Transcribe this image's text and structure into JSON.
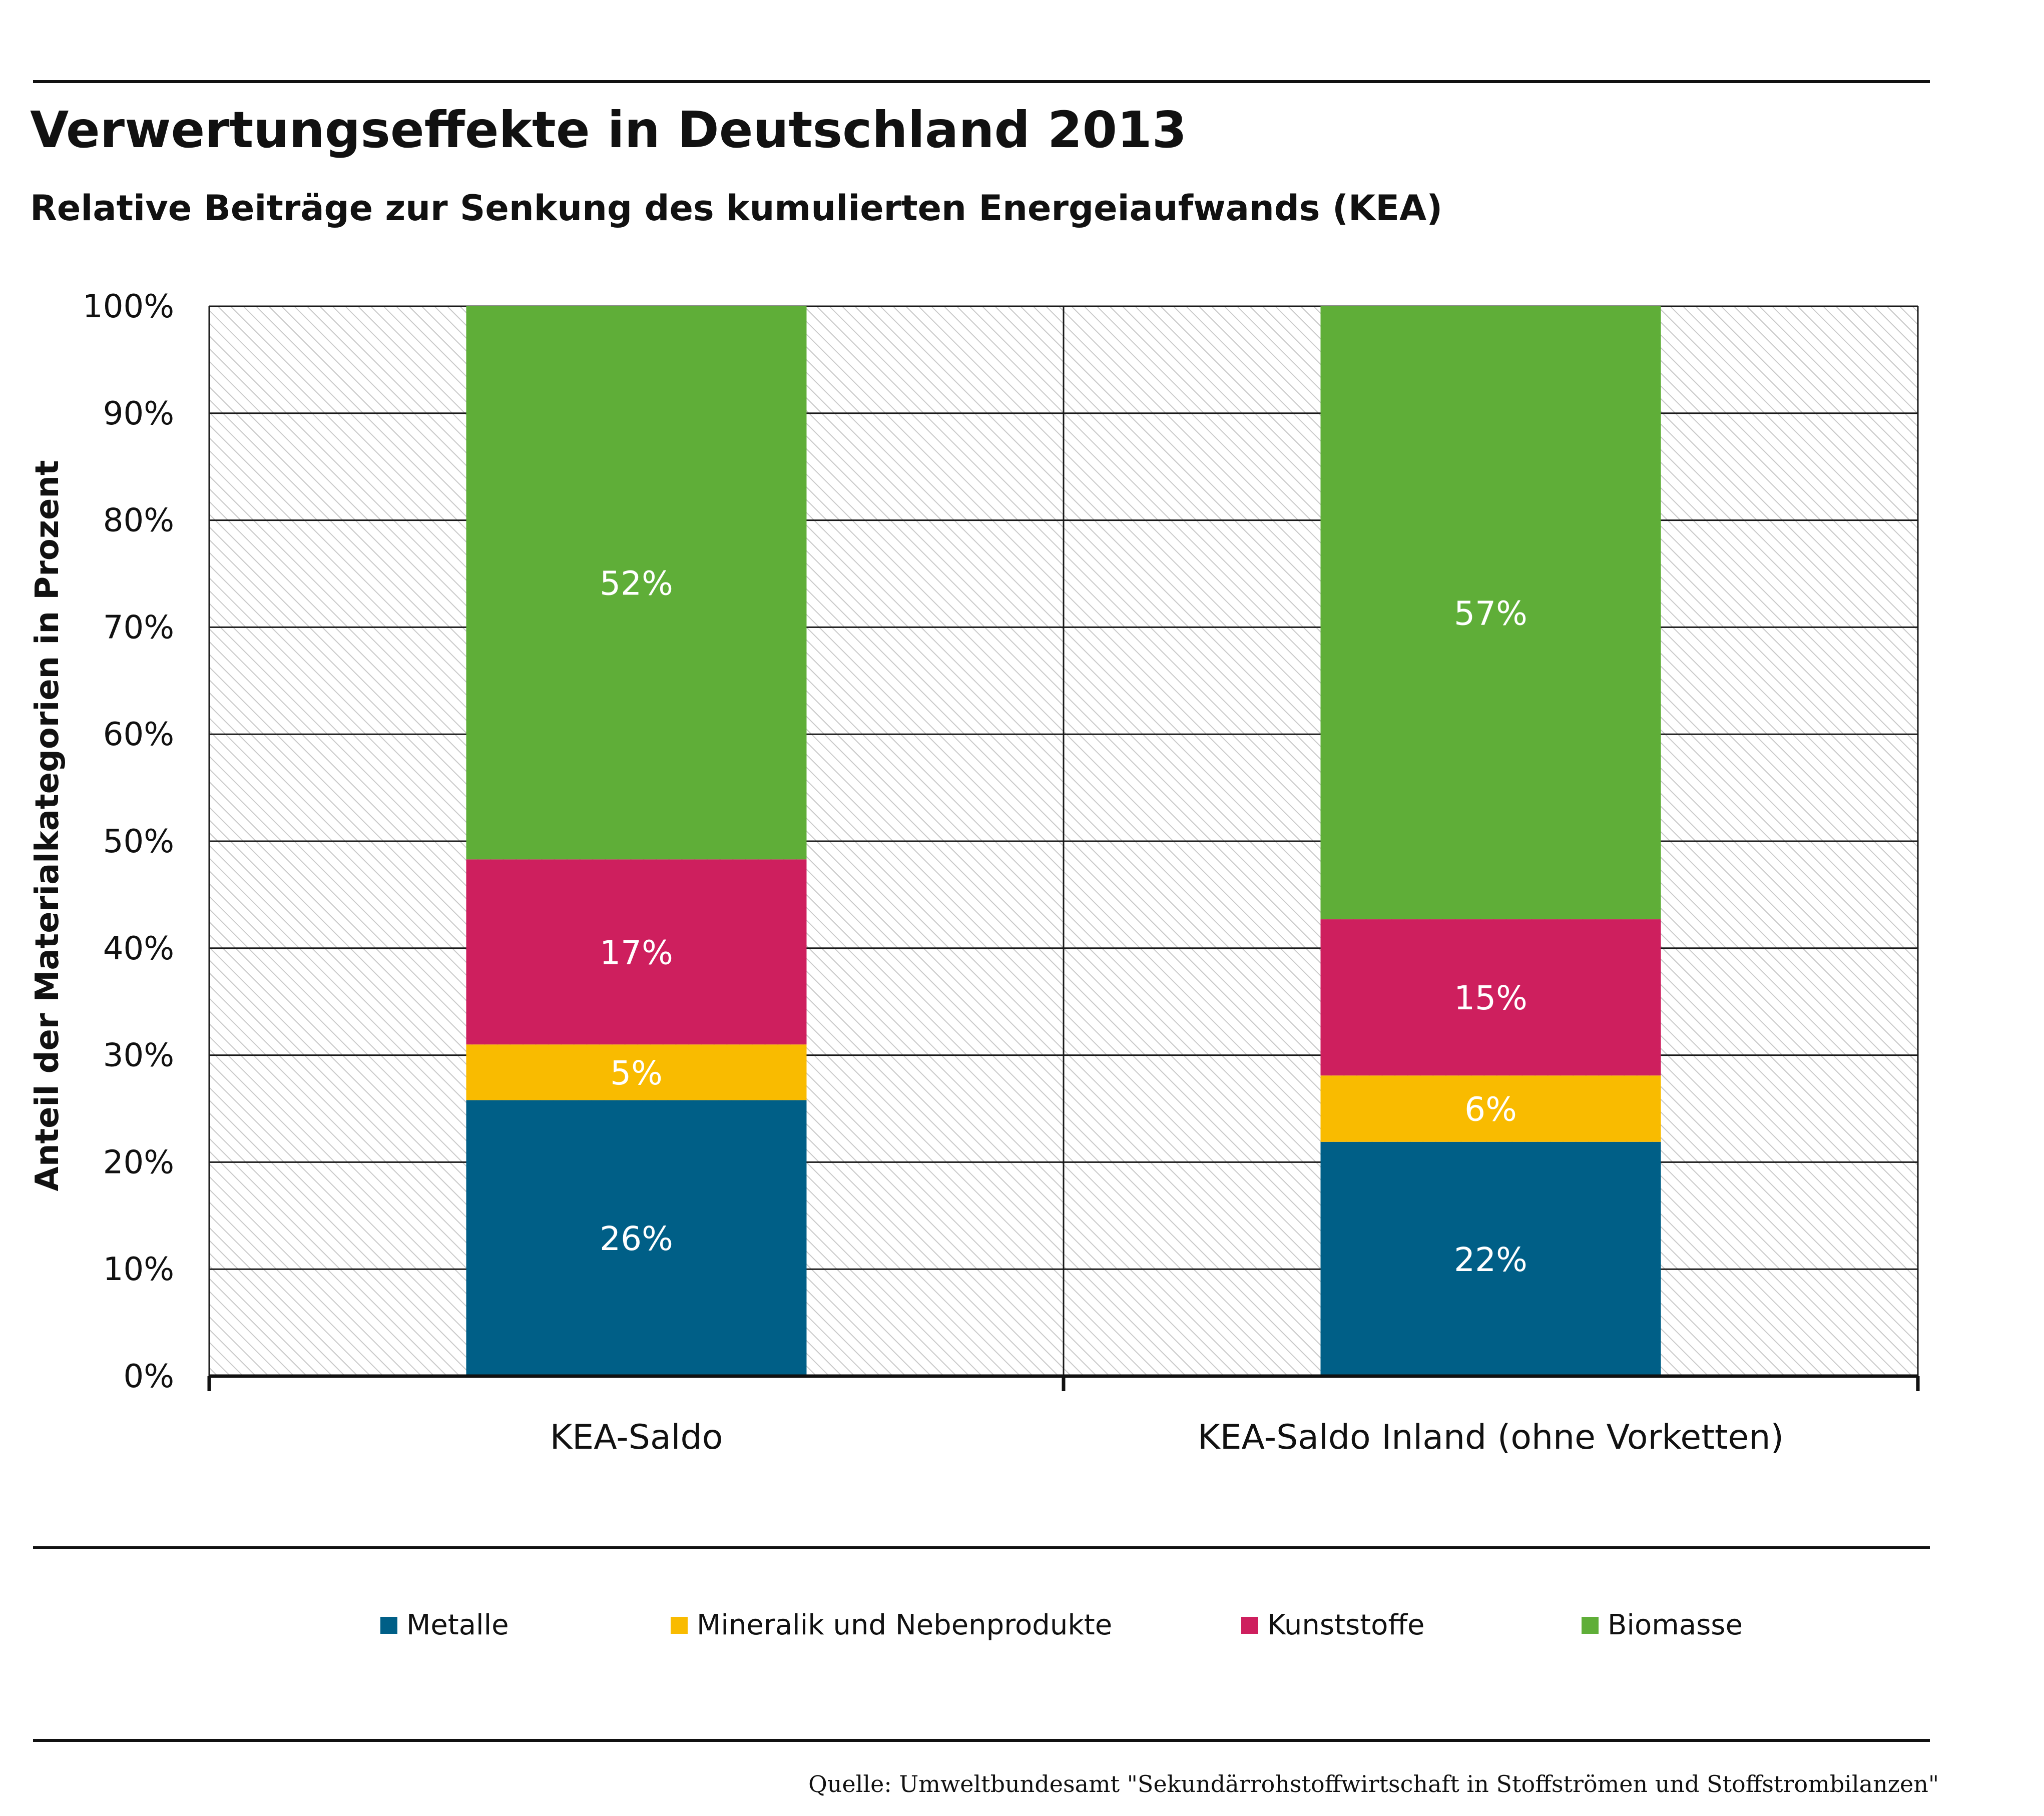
{
  "chart_data": {
    "type": "bar",
    "stacked": true,
    "title": "Verwertungseffekte in Deutschland 2013",
    "subtitle": "Relative Beiträge zur Senkung des kumulierten Energeiaufwands (KEA)",
    "ylabel": "Anteil der Materialkategorien in Prozent",
    "xlabel": "",
    "categories": [
      "KEA-Saldo",
      "KEA-Saldo Inland (ohne Vorketten)"
    ],
    "ylim": [
      0,
      100
    ],
    "yticks": [
      "0%",
      "10%",
      "20%",
      "30%",
      "40%",
      "50%",
      "60%",
      "70%",
      "80%",
      "90%",
      "100%"
    ],
    "grid": true,
    "legend_position": "bottom",
    "series": [
      {
        "name": "Metalle",
        "color": "#005f87",
        "values": [
          25.8,
          21.9
        ],
        "labels": [
          "26%",
          "22%"
        ],
        "label_color": "#ffffff"
      },
      {
        "name": "Mineralik und Nebenprodukte",
        "color": "#f9bb00",
        "values": [
          5.2,
          6.2
        ],
        "labels": [
          "5%",
          "6%"
        ],
        "label_color": "#ffffff"
      },
      {
        "name": "Kunststoffe",
        "color": "#ce1f5e",
        "values": [
          17.3,
          14.6
        ],
        "labels": [
          "17%",
          "15%"
        ],
        "label_color": "#ffffff"
      },
      {
        "name": "Biomasse",
        "color": "#5fae38",
        "values": [
          51.7,
          57.3
        ],
        "labels": [
          "52%",
          "57%"
        ],
        "label_color": "#ffffff"
      }
    ]
  },
  "source": "Quelle: Umweltbundesamt \"Sekundärrohstoffwirtschaft in Stoffströmen und Stoffstrombilanzen\""
}
